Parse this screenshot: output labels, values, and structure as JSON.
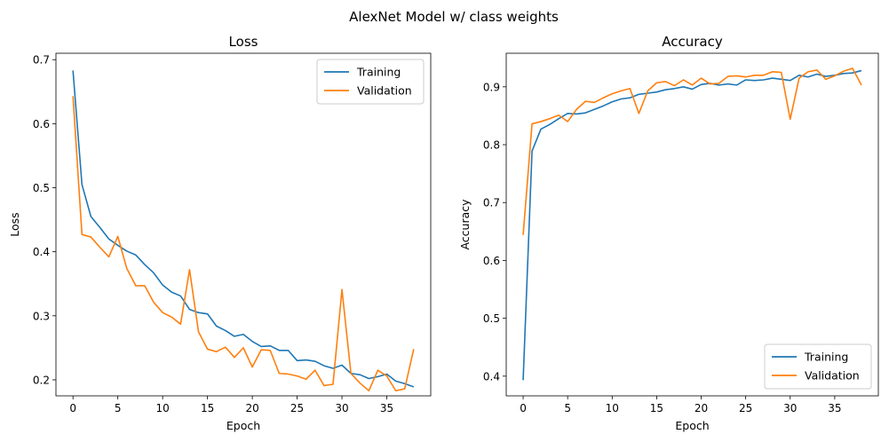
{
  "figure": {
    "suptitle": "AlexNet Model w/ class weights"
  },
  "colors": {
    "training": "#1f77b4",
    "validation": "#ff7f0e"
  },
  "chart_data": [
    {
      "type": "line",
      "title": "Loss",
      "xlabel": "Epoch",
      "ylabel": "Loss",
      "xlim": [
        -1.9,
        39.9
      ],
      "ylim": [
        0.175,
        0.71
      ],
      "xticks": [
        0,
        5,
        10,
        15,
        20,
        25,
        30,
        35
      ],
      "yticks": [
        0.2,
        0.3,
        0.4,
        0.5,
        0.6,
        0.7
      ],
      "grid": false,
      "legend": "upper right",
      "x": [
        0,
        1,
        2,
        3,
        4,
        5,
        6,
        7,
        8,
        9,
        10,
        11,
        12,
        13,
        14,
        15,
        16,
        17,
        18,
        19,
        20,
        21,
        22,
        23,
        24,
        25,
        26,
        27,
        28,
        29,
        30,
        31,
        32,
        33,
        34,
        35,
        36,
        37,
        38
      ],
      "series": [
        {
          "name": "Training",
          "color": "#1f77b4",
          "values": [
            0.683,
            0.505,
            0.455,
            0.438,
            0.42,
            0.41,
            0.401,
            0.395,
            0.38,
            0.367,
            0.348,
            0.337,
            0.331,
            0.31,
            0.305,
            0.303,
            0.284,
            0.277,
            0.268,
            0.271,
            0.26,
            0.252,
            0.253,
            0.246,
            0.246,
            0.23,
            0.231,
            0.229,
            0.222,
            0.218,
            0.223,
            0.21,
            0.208,
            0.202,
            0.205,
            0.209,
            0.198,
            0.194,
            0.189
          ]
        },
        {
          "name": "Validation",
          "color": "#ff7f0e",
          "values": [
            0.643,
            0.427,
            0.423,
            0.407,
            0.392,
            0.424,
            0.374,
            0.347,
            0.347,
            0.321,
            0.305,
            0.298,
            0.287,
            0.372,
            0.275,
            0.248,
            0.244,
            0.251,
            0.235,
            0.25,
            0.22,
            0.247,
            0.246,
            0.21,
            0.209,
            0.206,
            0.201,
            0.215,
            0.191,
            0.193,
            0.341,
            0.21,
            0.195,
            0.183,
            0.215,
            0.206,
            0.183,
            0.186,
            0.248
          ]
        }
      ]
    },
    {
      "type": "line",
      "title": "Accuracy",
      "xlabel": "Epoch",
      "ylabel": "Accuracy",
      "xlim": [
        -1.9,
        39.9
      ],
      "ylim": [
        0.366,
        0.958
      ],
      "xticks": [
        0,
        5,
        10,
        15,
        20,
        25,
        30,
        35
      ],
      "yticks": [
        0.4,
        0.5,
        0.6,
        0.7,
        0.8,
        0.9
      ],
      "grid": false,
      "legend": "lower right",
      "x": [
        0,
        1,
        2,
        3,
        4,
        5,
        6,
        7,
        8,
        9,
        10,
        11,
        12,
        13,
        14,
        15,
        16,
        17,
        18,
        19,
        20,
        21,
        22,
        23,
        24,
        25,
        26,
        27,
        28,
        29,
        30,
        31,
        32,
        33,
        34,
        35,
        36,
        37,
        38
      ],
      "series": [
        {
          "name": "Training",
          "color": "#1f77b4",
          "values": [
            0.393,
            0.789,
            0.827,
            0.835,
            0.845,
            0.854,
            0.853,
            0.855,
            0.861,
            0.867,
            0.874,
            0.879,
            0.881,
            0.887,
            0.889,
            0.891,
            0.895,
            0.897,
            0.9,
            0.896,
            0.904,
            0.906,
            0.903,
            0.905,
            0.903,
            0.912,
            0.911,
            0.912,
            0.915,
            0.913,
            0.911,
            0.92,
            0.917,
            0.922,
            0.918,
            0.92,
            0.923,
            0.924,
            0.928
          ]
        },
        {
          "name": "Validation",
          "color": "#ff7f0e",
          "values": [
            0.644,
            0.836,
            0.84,
            0.845,
            0.851,
            0.84,
            0.861,
            0.875,
            0.873,
            0.881,
            0.888,
            0.893,
            0.897,
            0.854,
            0.893,
            0.907,
            0.909,
            0.902,
            0.912,
            0.903,
            0.915,
            0.905,
            0.906,
            0.918,
            0.919,
            0.917,
            0.92,
            0.92,
            0.926,
            0.925,
            0.844,
            0.915,
            0.926,
            0.929,
            0.913,
            0.919,
            0.927,
            0.932,
            0.903
          ]
        }
      ]
    }
  ]
}
